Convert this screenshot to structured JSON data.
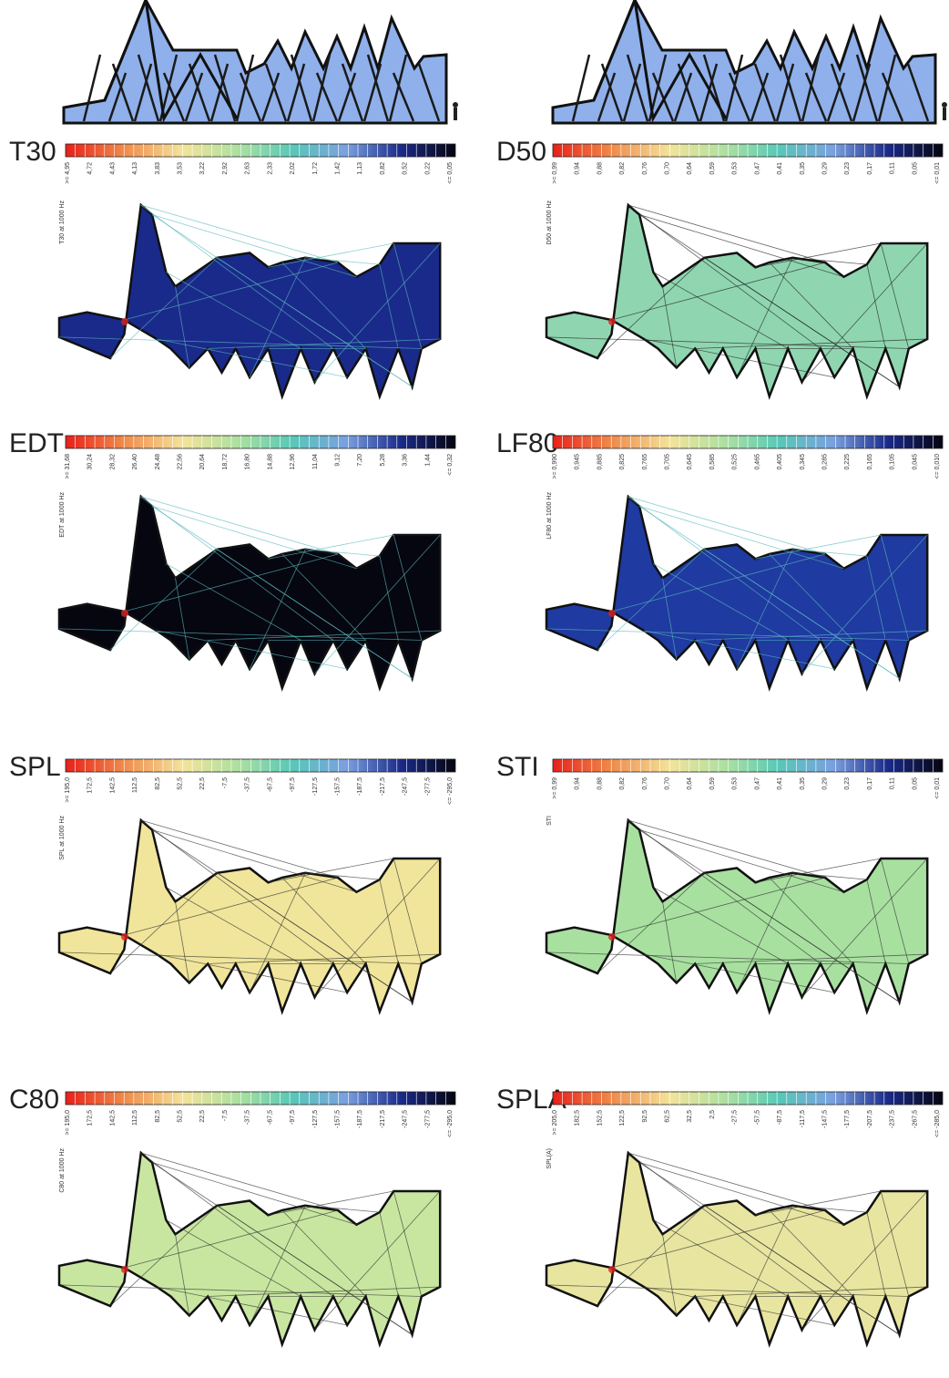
{
  "panels": [
    {
      "title": "T30",
      "axis_label": "T30 at 1000 Hz",
      "legend_labels": [
        ">= 4,95",
        "4,72",
        "4,43",
        "4,13",
        "3,83",
        "3,53",
        "3,22",
        "2,92",
        "2,63",
        "2,33",
        "2,02",
        "1,72",
        "1,42",
        "1,13",
        "0,82",
        "0,52",
        "0,22",
        "<= 0,05"
      ]
    },
    {
      "title": "D50",
      "axis_label": "D50 at 1000 Hz",
      "legend_labels": [
        ">= 0,99",
        "0,94",
        "0,88",
        "0,82",
        "0,76",
        "0,70",
        "0,64",
        "0,59",
        "0,53",
        "0,47",
        "0,41",
        "0,35",
        "0,29",
        "0,23",
        "0,17",
        "0,11",
        "0,05",
        "<= 0,01"
      ]
    },
    {
      "title": "EDT",
      "axis_label": "EDT at 1000 Hz",
      "legend_labels": [
        ">= 31,68",
        "30,24",
        "28,32",
        "26,40",
        "24,48",
        "22,56",
        "20,64",
        "18,72",
        "16,80",
        "14,88",
        "12,96",
        "11,04",
        "9,12",
        "7,20",
        "5,28",
        "3,36",
        "1,44",
        "<= 0,32"
      ]
    },
    {
      "title": "LF80",
      "axis_label": "LF80 at 1000 Hz",
      "legend_labels": [
        ">= 0,990",
        "0,945",
        "0,885",
        "0,825",
        "0,765",
        "0,705",
        "0,645",
        "0,585",
        "0,525",
        "0,465",
        "0,405",
        "0,345",
        "0,285",
        "0,225",
        "0,165",
        "0,105",
        "0,045",
        "<= 0,010"
      ]
    },
    {
      "title": "SPL",
      "axis_label": "SPL at 1000 Hz",
      "legend_labels": [
        ">= 195,0",
        "172,5",
        "142,5",
        "112,5",
        "82,5",
        "52,5",
        "22,5",
        "-7,5",
        "-37,5",
        "-67,5",
        "-97,5",
        "-127,5",
        "-157,5",
        "-187,5",
        "-217,5",
        "-247,5",
        "-277,5",
        "<= -295,0"
      ]
    },
    {
      "title": "STI",
      "axis_label": "STI",
      "legend_labels": [
        ">= 0,99",
        "0,94",
        "0,88",
        "0,82",
        "0,76",
        "0,70",
        "0,64",
        "0,59",
        "0,53",
        "0,47",
        "0,41",
        "0,35",
        "0,29",
        "0,23",
        "0,17",
        "0,11",
        "0,05",
        "<= 0,01"
      ]
    },
    {
      "title": "C80",
      "axis_label": "C80 at 1000 Hz",
      "legend_labels": [
        ">= 195,0",
        "172,5",
        "142,5",
        "112,5",
        "82,5",
        "52,5",
        "22,5",
        "-7,5",
        "-37,5",
        "-67,5",
        "-97,5",
        "-127,5",
        "-157,5",
        "-187,5",
        "-217,5",
        "-247,5",
        "-277,5",
        "<= -295,0"
      ]
    },
    {
      "title": "SPLA",
      "axis_label": "SPL(A)",
      "legend_labels": [
        ">= 205,0",
        "182,5",
        "152,5",
        "122,5",
        "92,5",
        "62,5",
        "32,5",
        "2,5",
        "-27,5",
        "-57,5",
        "-87,5",
        "-117,5",
        "-147,5",
        "-177,5",
        "-207,5",
        "-237,5",
        "-267,5",
        "<= -285,0"
      ]
    }
  ]
}
